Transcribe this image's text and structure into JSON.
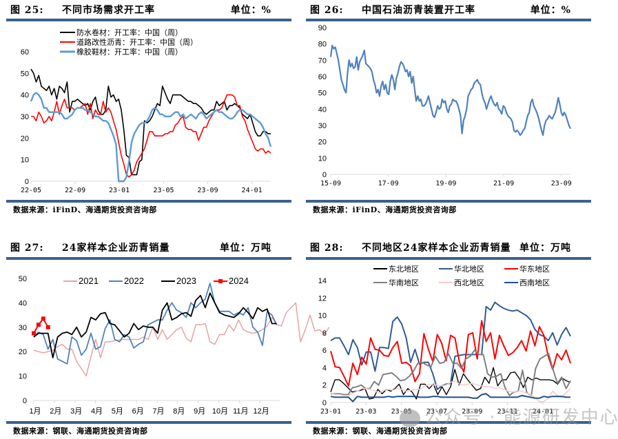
{
  "figures": [
    {
      "number": "图 25:",
      "title": "不同市场需求开工率",
      "unit": "单位：%",
      "source": "数据来源：iFinD、海通期货投资咨询部"
    },
    {
      "number": "图 26:",
      "title": "中国石油沥青装置开工率",
      "unit": "单位：%",
      "source": "数据来源：iFinD、海通期货投资咨询部"
    },
    {
      "number": "图 27:",
      "title": "24家样本企业沥青销量",
      "unit": "单位：万吨",
      "source": "数据来源：钢联、海通期货投资咨询部"
    },
    {
      "number": "图 28:",
      "title": "不同地区24家样本企业沥青销量",
      "unit": "单位：万吨",
      "source": "数据来源：钢联、海通期货投资咨询部"
    }
  ],
  "watermark": "公众号 · 能源研发中心",
  "chart_data": [
    {
      "type": "line",
      "title": "不同市场需求开工率",
      "xlabel": "",
      "ylabel": "%",
      "ylim": [
        0,
        60
      ],
      "yticks": [
        0,
        10,
        20,
        30,
        40,
        50,
        60
      ],
      "xticks": [
        "22-05",
        "22-09",
        "23-01",
        "23-05",
        "23-09",
        "24-01"
      ],
      "x_range": [
        "22-05",
        "24-02"
      ],
      "legend_position": "top-center",
      "grid": false,
      "series": [
        {
          "name": "防水卷材：开工率：中国（周）",
          "color": "#000000",
          "values": [
            52,
            50,
            46,
            49,
            44,
            43,
            42,
            44,
            40,
            43,
            38,
            44,
            43,
            41,
            46,
            32,
            37,
            37,
            38,
            37,
            36,
            35,
            36,
            33,
            37,
            39,
            33,
            31,
            31,
            33,
            44,
            39,
            40,
            37,
            38,
            33,
            24,
            12,
            11,
            3,
            3,
            3,
            9,
            10,
            28,
            27,
            28,
            30,
            33,
            36,
            35,
            44,
            41,
            38,
            36,
            40,
            40,
            40,
            40,
            39,
            38,
            37,
            37,
            36,
            36,
            35,
            34,
            32,
            31,
            32,
            33,
            33,
            37,
            35,
            36,
            37,
            33,
            35,
            35,
            36,
            35,
            34,
            31,
            30,
            29,
            31,
            27,
            23,
            21,
            21,
            23,
            23,
            22,
            22
          ]
        },
        {
          "name": "道路改性沥青：开工率：中国（周）",
          "color": "#ff0000",
          "values": [
            30,
            30,
            28,
            32,
            30,
            27,
            28,
            30,
            28,
            32,
            37,
            31,
            35,
            38,
            34,
            34,
            34,
            33,
            34,
            34,
            35,
            36,
            31,
            36,
            29,
            33,
            31,
            31,
            37,
            32,
            34,
            32,
            28,
            24,
            18,
            12,
            8,
            3,
            2,
            3,
            5,
            9,
            11,
            13,
            15,
            19,
            23,
            23,
            21,
            21,
            21,
            21,
            22,
            22,
            23,
            23,
            26,
            27,
            29,
            30,
            25,
            24,
            24,
            23,
            23,
            19,
            22,
            25,
            25,
            28,
            30,
            32,
            33,
            33,
            34,
            37,
            40,
            40,
            40,
            39,
            35,
            35,
            30,
            28,
            24,
            21,
            18,
            15,
            14,
            15,
            15,
            13,
            14,
            13
          ]
        },
        {
          "name": "橡胶鞋材：开工率：中国（周）",
          "color": "#5b9bd5",
          "values": [
            37,
            40,
            41,
            40,
            38,
            34,
            34,
            32,
            32,
            32,
            32,
            32,
            31,
            29,
            29,
            30,
            31,
            33,
            34,
            34,
            34,
            33,
            33,
            32,
            31,
            30,
            30,
            29,
            28,
            28,
            27,
            24,
            21,
            17,
            0,
            0,
            0,
            2,
            9,
            18,
            22,
            24,
            26,
            27,
            27,
            28,
            30,
            33,
            34,
            33,
            31,
            31,
            30,
            30,
            30,
            31,
            32,
            32,
            30,
            31,
            29,
            30,
            31,
            30,
            29,
            31,
            32,
            31,
            29,
            30,
            31,
            32,
            33,
            32,
            32,
            31,
            30,
            29,
            29,
            30,
            32,
            33,
            33,
            32,
            31,
            31,
            30,
            29,
            28,
            27,
            25,
            22,
            20,
            16
          ]
        }
      ]
    },
    {
      "type": "line",
      "title": "中国石油沥青装置开工率",
      "xlabel": "",
      "ylabel": "%",
      "ylim": [
        0,
        90
      ],
      "yticks": [
        0,
        10,
        20,
        30,
        40,
        50,
        60,
        70,
        80,
        90
      ],
      "xticks": [
        "15-09",
        "17-09",
        "19-09",
        "21-09",
        "23-09"
      ],
      "x_range": [
        "2015-09",
        "2024-02"
      ],
      "grid": false,
      "series": [
        {
          "name": "中国石油沥青装置开工率",
          "color": "#4f81bd",
          "values": [
            72,
            79,
            77,
            78,
            74,
            70,
            64,
            58,
            55,
            52,
            50,
            62,
            70,
            66,
            68,
            65,
            66,
            72,
            64,
            69,
            71,
            73,
            76,
            68,
            67,
            66,
            65,
            63,
            58,
            55,
            50,
            52,
            48,
            54,
            57,
            52,
            55,
            50,
            49,
            57,
            61,
            58,
            52,
            59,
            62,
            66,
            69,
            68,
            66,
            63,
            64,
            60,
            63,
            56,
            60,
            52,
            45,
            48,
            45,
            46,
            42,
            42,
            43,
            45,
            48,
            44,
            40,
            36,
            35,
            38,
            42,
            40,
            41,
            46,
            44,
            45,
            40,
            38,
            42,
            43,
            46,
            45,
            45,
            43,
            40,
            36,
            25,
            33,
            36,
            40,
            48,
            50,
            52,
            53,
            56,
            57,
            58,
            56,
            55,
            50,
            46,
            44,
            40,
            43,
            46,
            48,
            45,
            43,
            42,
            44,
            40,
            39,
            37,
            42,
            41,
            38,
            36,
            35,
            34,
            32,
            27,
            26,
            27,
            26,
            24,
            25,
            27,
            28,
            32,
            36,
            38,
            44,
            46,
            42,
            40,
            38,
            35,
            31,
            27,
            24,
            30,
            33,
            34,
            36,
            35,
            34,
            36,
            38,
            42,
            47,
            43,
            38,
            36,
            38,
            36,
            33,
            30,
            28
          ]
        }
      ]
    },
    {
      "type": "line",
      "title": "24家样本企业沥青销量",
      "xlabel": "",
      "ylabel": "万吨",
      "ylim": [
        0,
        50
      ],
      "yticks": [
        0,
        10,
        20,
        30,
        40,
        50
      ],
      "xticks": [
        "1月",
        "2月",
        "3月",
        "4月",
        "5月",
        "6月",
        "7月",
        "8月",
        "9月",
        "10月",
        "11月",
        "12月"
      ],
      "weeks_per_year": 52,
      "legend_position": "top-center",
      "grid": false,
      "series": [
        {
          "name": "2021",
          "color": "#e6a3a3",
          "marker": false,
          "values": [
            20.5,
            20,
            19.5,
            20,
            20.5,
            22,
            23,
            21,
            21,
            16,
            13,
            10,
            18,
            25,
            17.5,
            24,
            24,
            24.5,
            24.8,
            25,
            25,
            25,
            25,
            26,
            25,
            30,
            25,
            29,
            25,
            27,
            29,
            30,
            25.5,
            24,
            31,
            31,
            31.5,
            24,
            23,
            27,
            27,
            31,
            28.5,
            33,
            29,
            28,
            27.5,
            28,
            29,
            30.5,
            34,
            31,
            30.5,
            36,
            38,
            40,
            24,
            29,
            35,
            28.5,
            29,
            27,
            30
          ]
        },
        {
          "name": "2022",
          "color": "#4f81bd",
          "marker": false,
          "values": [
            26,
            28,
            27,
            21,
            25,
            17,
            16,
            15,
            26,
            24.5,
            18.5,
            21,
            27.5,
            21,
            22,
            29.5,
            33,
            25,
            24,
            27,
            26,
            21.5,
            23,
            24,
            31,
            32,
            33,
            33,
            37,
            40,
            37,
            36,
            34,
            40,
            38,
            40,
            41.5,
            48,
            40,
            36.5,
            36.5,
            36.5,
            35,
            36,
            35,
            38,
            30,
            28,
            22.5,
            36.5,
            35,
            31
          ]
        },
        {
          "name": "2023",
          "color": "#000000",
          "marker": false,
          "values": [
            26,
            27.5,
            27.5,
            27.5,
            17.5,
            26,
            27.5,
            28,
            27,
            30,
            26,
            28,
            34,
            33,
            35.5,
            36,
            31.5,
            31,
            28.5,
            26,
            27.5,
            31.5,
            29,
            30.5,
            30,
            30,
            27.5,
            37,
            40,
            33,
            34,
            35.5,
            36,
            34.5,
            41,
            43,
            38,
            44,
            40,
            36,
            35,
            34.5,
            34,
            35.5,
            38,
            36,
            33.5,
            38,
            36.5,
            37.5,
            31.5,
            31.5
          ]
        },
        {
          "name": "2024",
          "color": "#ff0000",
          "marker": true,
          "values": [
            27.5,
            31,
            33.5,
            30
          ]
        }
      ]
    },
    {
      "type": "line",
      "title": "不同地区24家样本企业沥青销量",
      "xlabel": "",
      "ylabel": "万吨",
      "ylim": [
        0,
        14
      ],
      "yticks": [
        0,
        2,
        4,
        6,
        8,
        10,
        12,
        14
      ],
      "xticks": [
        "23-01",
        "23-03",
        "23-05",
        "23-07",
        "23-09",
        "23-11",
        "24-01"
      ],
      "x_range": [
        "2023-01",
        "2024-02"
      ],
      "legend_position": "top-center",
      "grid": false,
      "series": [
        {
          "name": "东北地区",
          "color": "#000000",
          "values": [
            1.2,
            2.6,
            2.6,
            2.2,
            1.7,
            1.2,
            1.3,
            1.4,
            1.6,
            0.4,
            0.5,
            1.5,
            1.0,
            1.5,
            1.3,
            1.6,
            2.1,
            0.9,
            1.6,
            1.2,
            0.4,
            2.1,
            2.1,
            1.6,
            2.1,
            0.9,
            1.8,
            0.9,
            1.8,
            3.8,
            2.0,
            3.3,
            2.6,
            2.0,
            1.4,
            1.6,
            2.9,
            2.2,
            4.0,
            1.9,
            2.6,
            2.6,
            3.4,
            3.5,
            2.8,
            1.7,
            2.9,
            2.6,
            2.8,
            2.6,
            2.6,
            2.6,
            2.5,
            2.1,
            2.8,
            2.5,
            2.3
          ]
        },
        {
          "name": "华北地区",
          "color": "#2e5c94",
          "values": [
            7.1,
            7.4,
            7.4,
            6.5,
            5.5,
            7.2,
            6.3,
            4.3,
            5.8,
            5.8,
            3.6,
            6.3,
            6.3,
            6.2,
            9.3,
            9.8,
            9.0,
            7.4,
            4.6,
            6.1,
            4.4,
            4.6,
            4.6,
            3.3,
            1.5,
            1.9,
            2.1,
            2.2,
            5.3,
            5.4,
            5.5,
            5.5,
            5.5,
            5.5,
            5.5,
            11.0,
            10.6,
            11.5,
            11.1,
            10.8,
            10.6,
            10.5,
            10.6,
            10.3,
            10.0,
            9.5,
            8.4,
            7.8,
            7.6,
            7.1,
            8.0,
            6.6,
            7.8,
            8.6,
            7.6
          ]
        },
        {
          "name": "华东地区",
          "color": "#ff0000",
          "values": [
            5.9,
            4.1,
            4.0,
            3.0,
            1.9,
            4.5,
            3.2,
            5.2,
            4.4,
            7.4,
            6.1,
            6.0,
            5.4,
            5.3,
            6.3,
            7.0,
            4.5,
            4.6,
            4.2,
            2.4,
            3.3,
            7.9,
            6.1,
            4.7,
            7.8,
            6.8,
            4.8,
            7.7,
            7.4,
            4.6,
            3.5,
            7.8,
            8.0,
            5.0,
            9.4,
            7.0,
            8.0,
            5.0,
            7.7,
            6.5,
            5.4,
            5.7,
            6.3,
            7.1,
            5.9,
            8.2,
            6.5,
            8.7,
            7.7,
            5.3,
            3.8,
            5.6,
            4.9,
            6.0,
            4.5
          ]
        },
        {
          "name": "华南地区",
          "color": "#808080",
          "values": [
            1.0,
            1.0,
            1.0,
            0.9,
            0.9,
            1.7,
            1.8,
            2.0,
            1.6,
            1.6,
            2.4,
            2.0,
            3.2,
            3.3,
            3.4,
            3.0,
            2.5,
            2.6,
            3.0,
            3.6,
            4.5,
            4.6,
            4.3,
            4.1,
            5.3,
            4.5,
            4.6,
            5.6,
            4.5,
            4.5,
            3.9,
            5.0,
            5.3,
            6.0,
            5.5,
            5.5,
            3.3,
            2.9,
            3.0,
            3.3,
            1.7,
            0.8,
            1.2,
            1.3,
            3.7,
            1.1,
            0.8,
            3.9,
            5.0,
            5.3,
            5.6,
            3.8,
            2.2,
            2.9,
            1.6,
            2.5
          ]
        },
        {
          "name": "西北地区",
          "color": "#f4cccc",
          "values": [
            1.1,
            0.9,
            0.9,
            0.8,
            0.8,
            1.1,
            1.3,
            1.6,
            1.6,
            1.5,
            1.3,
            1.1,
            1.4,
            1.5,
            1.4,
            1.6,
            1.5,
            1.3,
            1.4,
            1.5,
            1.5,
            1.8,
            2.1,
            2.0,
            2.0,
            1.9,
            2.0,
            2.3,
            2.5,
            2.1,
            2.0,
            2.1,
            2.2,
            2.0,
            1.9,
            1.8,
            1.8,
            1.6,
            1.7,
            1.5,
            1.3,
            1.2,
            1.3,
            1.3,
            1.1,
            0.9,
            0.6,
            0.1,
            0.1,
            0.5,
            1.3,
            0.8,
            0.6,
            1.1,
            1.6
          ]
        },
        {
          "name": "西南地区",
          "color": "#1f4e8c",
          "values": [
            0.7,
            0.6,
            0.6,
            0.6,
            0.6,
            0.1,
            0.7,
            0.6,
            0.6,
            0.6,
            0.6,
            0.6,
            0.6,
            0.7,
            0.6,
            0.7,
            0.7,
            0.7,
            0.7,
            0.7,
            0.6,
            0.6,
            0.6,
            0.7,
            0.7,
            0.6,
            0.6,
            0.6,
            0.6,
            0.6,
            0.6,
            0.6,
            0.5,
            0.5,
            0.9,
            1.0,
            0.6,
            0.6,
            0.6,
            0.6,
            0.6,
            0.6,
            0.6,
            0.8,
            0.7,
            0.6,
            0.5,
            0.5,
            0.7,
            0.6,
            0.7,
            0.7,
            0.7,
            0.6,
            0.6
          ]
        }
      ]
    }
  ]
}
